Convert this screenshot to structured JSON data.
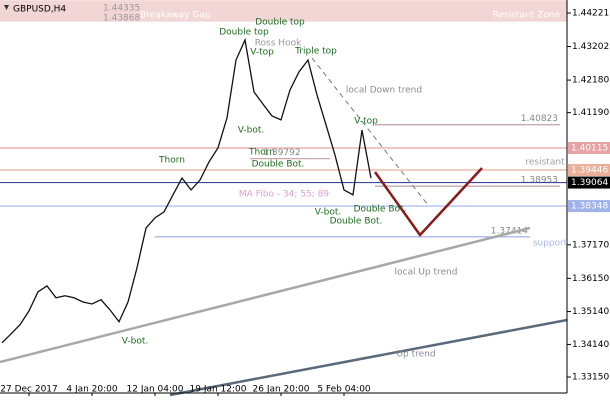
{
  "chart_data": {
    "type": "line",
    "title": "GBPUSD,H4",
    "categories": [
      null,
      null,
      null,
      "27 Dec 2017",
      null,
      null,
      null,
      null,
      null,
      null,
      "4 Jan 20:00",
      null,
      null,
      null,
      null,
      null,
      null,
      "12 Jan 04:00",
      null,
      null,
      null,
      null,
      null,
      null,
      "19 Jan 12:00",
      null,
      null,
      null,
      null,
      null,
      null,
      "26 Jan 20:00",
      null,
      null,
      null,
      null,
      null,
      null,
      "5 Feb 04:00",
      null,
      null,
      null
    ],
    "values": [
      1.3419,
      1.3446,
      1.3474,
      1.3516,
      1.3574,
      1.3592,
      1.3556,
      1.3562,
      1.3556,
      1.3543,
      1.3537,
      1.355,
      1.3519,
      1.3483,
      1.3543,
      1.3647,
      1.3768,
      1.3799,
      1.3817,
      1.3869,
      1.392,
      1.3884,
      1.3914,
      1.3969,
      1.4012,
      1.4103,
      1.4279,
      1.434,
      1.4182,
      1.4145,
      1.4109,
      1.4097,
      1.4188,
      1.4243,
      1.4279,
      1.4173,
      1.4082,
      1.399,
      1.3884,
      1.3869,
      1.4066,
      1.392
    ],
    "color": "#111111",
    "ylim": [
      1.32663,
      1.44616
    ],
    "yticks": [
      1.44221,
      1.43202,
      {
        "value": 1.4218,
        "label": "1.42180"
      },
      {
        "value": 1.4119,
        "label": "1.41190"
      },
      {
        "value": 1.3717,
        "label": "1.37170"
      },
      {
        "value": 1.3615,
        "label": "1.36150"
      },
      {
        "value": 1.3514,
        "label": "1.35140"
      },
      {
        "value": 1.3414,
        "label": "1.34140"
      },
      {
        "value": 1.3315,
        "label": "1.33150"
      }
    ],
    "zone": {
      "label": "Breakaway Gap",
      "side_label": "Resistant Zone",
      "bounds": [
        1.44335,
        1.43868
      ],
      "color": "#f2d6d6"
    },
    "levels": [
      {
        "value": 1.40823,
        "color": "#c9a9a9"
      },
      {
        "value": 1.39792,
        "color": "#c9a9a9"
      },
      {
        "value": 1.38953,
        "color": "#c9a9a9"
      },
      {
        "value": 1.37414,
        "color": "#a9b9e9"
      }
    ],
    "price_boxes": [
      {
        "value": 1.40115,
        "color": "#e7a3a3"
      },
      {
        "value": 1.39446,
        "color": "#eab09a"
      },
      {
        "value": 1.39064,
        "color": "#000000"
      },
      {
        "value": 1.38348,
        "color": "#9fb3ea"
      }
    ],
    "annotations": [
      {
        "text": "Double top",
        "color": "#1f6b1f"
      },
      {
        "text": "Double top",
        "color": "#1f6b1f"
      },
      {
        "text": "Ross Hook",
        "color": "#999999"
      },
      {
        "text": "V-top",
        "color": "#1f6b1f"
      },
      {
        "text": "Triple top",
        "color": "#1f6b1f"
      },
      {
        "text": "local Down trend",
        "color": "#8a8a9a"
      },
      {
        "text": "V-top",
        "color": "#1f6b1f"
      },
      {
        "text": "V-bot.",
        "color": "#1f6b1f"
      },
      {
        "text": "Thorn",
        "color": "#1f6b1f"
      },
      {
        "text": "Thorn",
        "color": "#1f6b1f"
      },
      {
        "text": "Double Bot.",
        "color": "#1f6b1f"
      },
      {
        "text": "MA Fibo - 34; 55; 89",
        "color": "#e0a0d0"
      },
      {
        "text": "V-bot.",
        "color": "#1f6b1f"
      },
      {
        "text": "Double Bot.",
        "color": "#1f6b1f"
      },
      {
        "text": "Double Bot.",
        "color": "#1f6b1f"
      },
      {
        "text": "resistant",
        "color": "#a0a0a0"
      },
      {
        "text": "support",
        "color": "#a9b9e9"
      },
      {
        "text": "local  Up trend",
        "color": "#8a8a9a"
      },
      {
        "text": "Up trend",
        "color": "#8a8a9a"
      },
      {
        "text": "V-bot.",
        "color": "#1f6b1f"
      }
    ]
  }
}
